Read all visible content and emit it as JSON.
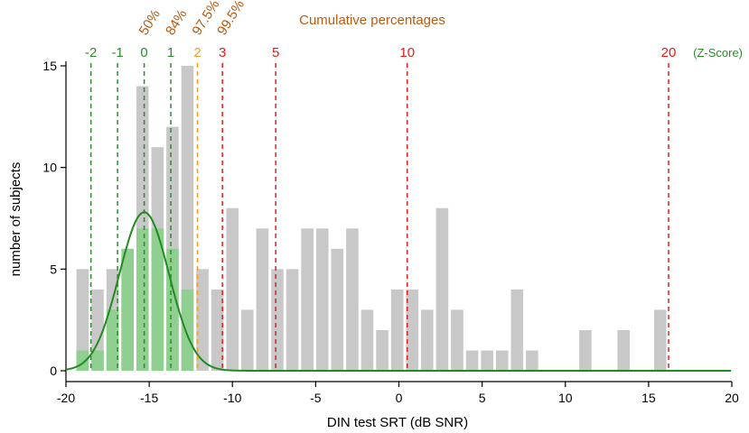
{
  "chart_data": {
    "type": "bar",
    "xlabel": "DIN test SRT (dB SNR)",
    "ylabel": "number of subjects",
    "xlim": [
      -20,
      20
    ],
    "ylim": [
      0,
      15
    ],
    "x_ticks": [
      "-20",
      "-15",
      "-10",
      "-5",
      "0",
      "5",
      "10",
      "15",
      "20"
    ],
    "y_ticks": [
      "0",
      "5",
      "10",
      "15"
    ],
    "bin_width": 0.9,
    "bars_gray": [
      {
        "x": -19.0,
        "value": 5
      },
      {
        "x": -18.1,
        "value": 4
      },
      {
        "x": -17.2,
        "value": 5
      },
      {
        "x": -16.3,
        "value": 6
      },
      {
        "x": -15.4,
        "value": 14
      },
      {
        "x": -14.5,
        "value": 11
      },
      {
        "x": -13.6,
        "value": 12
      },
      {
        "x": -12.7,
        "value": 15
      },
      {
        "x": -11.8,
        "value": 5
      },
      {
        "x": -10.9,
        "value": 4
      },
      {
        "x": -10.0,
        "value": 8
      },
      {
        "x": -9.1,
        "value": 3
      },
      {
        "x": -8.2,
        "value": 7
      },
      {
        "x": -7.3,
        "value": 5
      },
      {
        "x": -6.4,
        "value": 5
      },
      {
        "x": -5.5,
        "value": 7
      },
      {
        "x": -4.6,
        "value": 7
      },
      {
        "x": -3.7,
        "value": 6
      },
      {
        "x": -2.8,
        "value": 7
      },
      {
        "x": -1.9,
        "value": 3
      },
      {
        "x": -1.0,
        "value": 2
      },
      {
        "x": -0.1,
        "value": 4
      },
      {
        "x": 0.8,
        "value": 4
      },
      {
        "x": 1.7,
        "value": 3
      },
      {
        "x": 2.6,
        "value": 8
      },
      {
        "x": 3.5,
        "value": 3
      },
      {
        "x": 4.4,
        "value": 1
      },
      {
        "x": 5.3,
        "value": 1
      },
      {
        "x": 6.2,
        "value": 1
      },
      {
        "x": 7.1,
        "value": 4
      },
      {
        "x": 8.0,
        "value": 1
      },
      {
        "x": 11.2,
        "value": 2
      },
      {
        "x": 13.5,
        "value": 2
      },
      {
        "x": 15.7,
        "value": 3
      }
    ],
    "bars_green": [
      {
        "x": -19.0,
        "value": 1
      },
      {
        "x": -18.1,
        "value": 1
      },
      {
        "x": -17.2,
        "value": 3
      },
      {
        "x": -16.3,
        "value": 6
      },
      {
        "x": -15.4,
        "value": 7
      },
      {
        "x": -14.5,
        "value": 7
      },
      {
        "x": -13.6,
        "value": 6
      },
      {
        "x": -12.7,
        "value": 4
      }
    ],
    "normal_fit": {
      "mean": -15.3,
      "sd": 1.5,
      "peak": 7.8
    },
    "z_lines": [
      {
        "label": "-2",
        "x": -18.5,
        "color": "#2e8b2e"
      },
      {
        "label": "-1",
        "x": -16.9,
        "color": "#2e8b2e"
      },
      {
        "label": "0",
        "x": -15.3,
        "color": "#2e8b2e"
      },
      {
        "label": "1",
        "x": -13.7,
        "color": "#2e8b2e"
      },
      {
        "label": "2",
        "x": -12.1,
        "color": "#f0a020"
      },
      {
        "label": "3",
        "x": -10.6,
        "color": "#e02020"
      },
      {
        "label": "5",
        "x": -7.4,
        "color": "#e02020"
      },
      {
        "label": "10",
        "x": 0.5,
        "color": "#e02020"
      },
      {
        "label": "20",
        "x": 16.2,
        "color": "#e02020"
      }
    ],
    "z_score_label": "(Z-Score)",
    "cumulative_title": "Cumulative percentages",
    "percentages": [
      {
        "label": "50%",
        "x": -15.3
      },
      {
        "label": "84%",
        "x": -13.7
      },
      {
        "label": "97.5%",
        "x": -12.1
      },
      {
        "label": "99.5%",
        "x": -10.6
      }
    ],
    "colors": {
      "gray_bar": "#c8c8c8",
      "green_bar": "#8fcf8f",
      "curve": "#1e8c1e",
      "z_green": "#2e8b2e",
      "z_orange": "#f0a020",
      "z_red": "#e02020",
      "percent_text": "#b85a10",
      "axis": "#000000"
    }
  }
}
